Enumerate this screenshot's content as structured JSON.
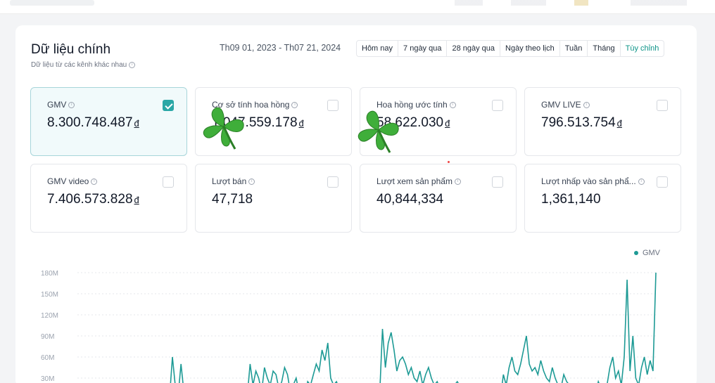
{
  "header": {
    "title": "Dữ liệu chính",
    "subtitle": "Dữ liệu từ các kênh khác nhau",
    "date_range": "Th09 01, 2023 - Th07 21, 2024"
  },
  "filters": [
    "Hôm nay",
    "7 ngày qua",
    "28 ngày qua",
    "Ngày theo lịch",
    "Tuần",
    "Tháng",
    "Tùy chỉnh"
  ],
  "metrics": [
    {
      "label": "GMV",
      "value": "8.300.748.487",
      "currency": "đ",
      "checked": true
    },
    {
      "label": "Cơ sở tính hoa hồng",
      "value": "1.047.559.178",
      "currency": "đ",
      "checked": false
    },
    {
      "label": "Hoa hồng ước tính",
      "value": "58.622.030",
      "currency": "đ",
      "checked": false
    },
    {
      "label": "GMV LIVE",
      "value": "796.513.754",
      "currency": "đ",
      "checked": false
    },
    {
      "label": "GMV video",
      "value": "7.406.573.828",
      "currency": "đ",
      "checked": false
    },
    {
      "label": "Lượt bán",
      "value": "47,718",
      "currency": "",
      "checked": false
    },
    {
      "label": "Lượt xem sản phẩm",
      "value": "40,844,334",
      "currency": "",
      "checked": false
    },
    {
      "label": "Lượt nhấp vào sản phẩ...",
      "value": "1,361,140",
      "currency": "",
      "checked": false
    }
  ],
  "colors": {
    "accent": "#1d9a95",
    "active_card_bg": "#f1fafb"
  },
  "chart_data": {
    "type": "line",
    "series": [
      {
        "name": "GMV",
        "values": [
          2,
          1,
          3,
          2,
          1,
          2,
          1,
          3,
          2,
          1,
          2,
          3,
          2,
          1,
          2,
          3,
          2,
          1,
          3,
          2,
          1,
          2,
          3,
          2,
          1,
          2,
          2,
          3,
          1,
          2,
          2,
          3,
          2,
          60,
          20,
          5,
          50,
          10,
          2,
          3,
          2,
          4,
          3,
          2,
          3,
          2,
          4,
          2,
          3,
          4,
          3,
          2,
          3,
          2,
          5,
          4,
          3,
          6,
          5,
          4,
          50,
          20,
          40,
          30,
          10,
          45,
          30,
          20,
          40,
          35,
          15,
          25,
          45,
          35,
          10,
          20,
          30,
          10,
          5,
          3,
          25,
          20,
          35,
          50,
          40,
          70,
          55,
          80,
          30,
          20,
          25,
          15,
          10,
          20,
          15,
          10,
          5,
          3,
          4,
          5,
          3,
          2,
          4,
          3,
          5,
          4,
          100,
          45,
          80,
          95,
          70,
          40,
          55,
          60,
          50,
          35,
          45,
          30,
          25,
          40,
          20,
          35,
          45,
          30,
          20,
          25,
          15,
          20,
          10,
          5,
          15,
          20,
          25,
          18,
          10,
          12,
          8,
          5,
          6,
          4,
          5,
          3,
          4,
          5,
          6,
          4,
          5,
          3,
          35,
          20,
          45,
          60,
          40,
          35,
          50,
          70,
          90,
          50,
          40,
          45,
          35,
          55,
          40,
          30,
          25,
          45,
          30,
          20,
          15,
          35,
          25,
          20,
          10,
          8,
          5,
          10,
          20,
          15,
          5,
          3,
          8,
          25,
          15,
          5,
          20,
          45,
          60,
          30,
          40,
          20,
          60,
          170,
          40,
          90,
          30,
          20,
          45,
          60,
          35,
          55,
          40,
          180
        ]
      }
    ],
    "y_ticks": [
      "180M",
      "150M",
      "120M",
      "90M",
      "60M",
      "30M"
    ],
    "ylim": [
      0,
      180
    ]
  }
}
